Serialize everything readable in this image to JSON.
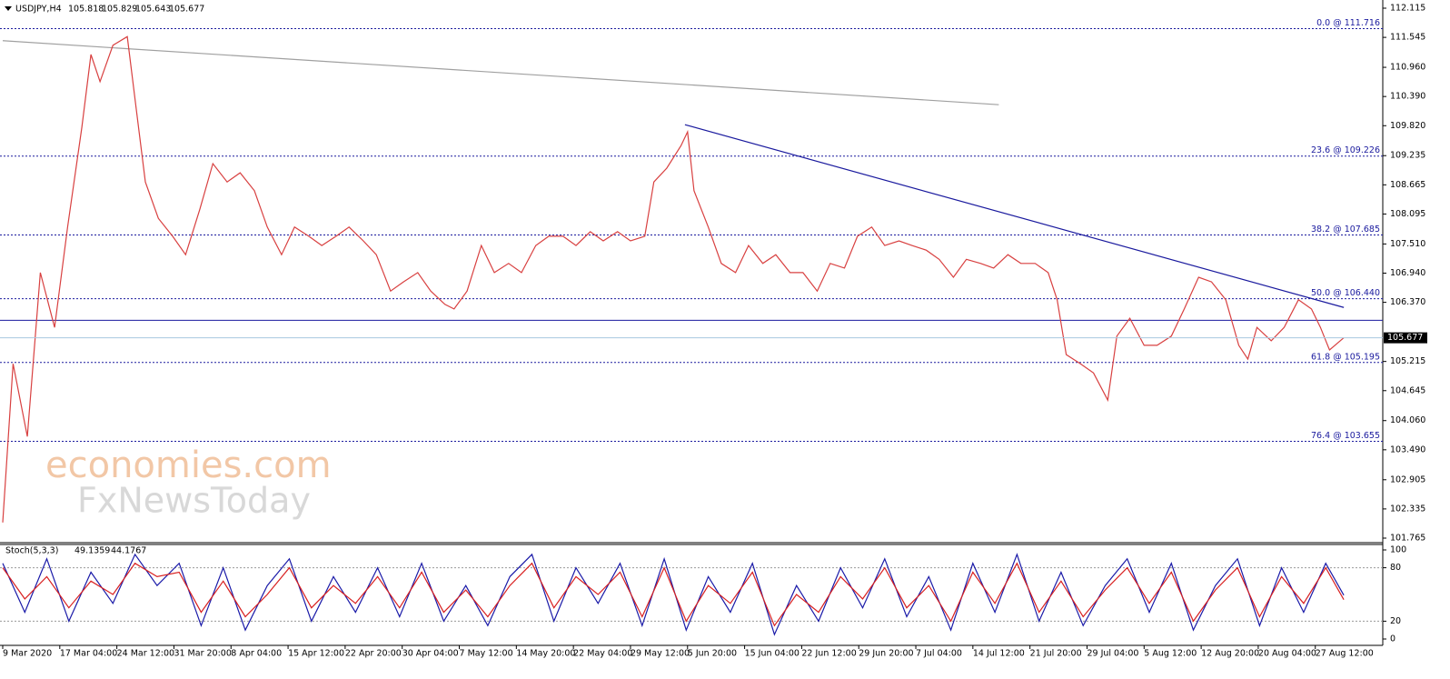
{
  "chart_data": [
    {
      "type": "line",
      "symbol": "USDJPY,H4",
      "ohlc": [
        105.818,
        105.829,
        105.643,
        105.677
      ],
      "watermark": [
        "economies.com",
        "FxNewsToday"
      ],
      "xlim": [
        0,
        1036
      ],
      "xticks": [
        {
          "value": 0,
          "label": "9 Mar 2020"
        },
        {
          "value": 44,
          "label": "17 Mar 04:00"
        },
        {
          "value": 88,
          "label": "24 Mar 12:00"
        },
        {
          "value": 132,
          "label": "31 Mar 20:00"
        },
        {
          "value": 176,
          "label": "8 Apr 04:00"
        },
        {
          "value": 220,
          "label": "15 Apr 12:00"
        },
        {
          "value": 264,
          "label": "22 Apr 20:00"
        },
        {
          "value": 308,
          "label": "30 Apr 04:00"
        },
        {
          "value": 352,
          "label": "7 May 12:00"
        },
        {
          "value": 396,
          "label": "14 May 20:00"
        },
        {
          "value": 440,
          "label": "22 May 04:00"
        },
        {
          "value": 484,
          "label": "29 May 12:00"
        },
        {
          "value": 528,
          "label": "5 Jun 20:00"
        },
        {
          "value": 572,
          "label": "15 Jun 04:00"
        },
        {
          "value": 616,
          "label": "22 Jun 12:00"
        },
        {
          "value": 660,
          "label": "29 Jun 20:00"
        },
        {
          "value": 704,
          "label": "7 Jul 04:00"
        },
        {
          "value": 748,
          "label": "14 Jul 12:00"
        },
        {
          "value": 792,
          "label": "21 Jul 20:00"
        },
        {
          "value": 836,
          "label": "29 Jul 04:00"
        },
        {
          "value": 880,
          "label": "5 Aug 12:00"
        },
        {
          "value": 924,
          "label": "12 Aug 20:00"
        },
        {
          "value": 968,
          "label": "20 Aug 04:00"
        },
        {
          "value": 1012,
          "label": "27 Aug 12:00"
        }
      ],
      "ylim": [
        101.765,
        112.115
      ],
      "yticks": [
        112.115,
        111.545,
        {
          "value": 110.96,
          "label": "110.960"
        },
        {
          "value": 110.39,
          "label": "110.390"
        },
        {
          "value": 109.82,
          "label": "109.820"
        },
        109.235,
        108.665,
        108.095,
        {
          "value": 107.51,
          "label": "107.510"
        },
        {
          "value": 106.94,
          "label": "106.940"
        },
        {
          "value": 106.37,
          "label": "106.370"
        },
        105.215,
        104.645,
        {
          "value": 104.06,
          "label": "104.060"
        },
        {
          "value": 103.49,
          "label": "103.490"
        },
        102.905,
        102.335,
        101.765
      ],
      "levels": [
        {
          "value": 111.716,
          "label": "0.0 @ 111.716"
        },
        {
          "value": 109.226,
          "label": "23.6 @ 109.226"
        },
        {
          "value": 107.685,
          "label": "38.2 @ 107.685"
        },
        {
          "value": 106.44,
          "label": "50.0 @ 106.440"
        },
        {
          "value": 105.195,
          "label": "61.8 @ 105.195"
        },
        {
          "value": 103.655,
          "label": "76.4 @ 103.655"
        }
      ],
      "hlines": [
        106.02
      ],
      "trendlines": [
        {
          "x": [
            0,
            768
          ],
          "y": [
            111.48,
            110.23
          ],
          "color": "#a0a0a0"
        },
        {
          "x": [
            526,
            1034
          ],
          "y": [
            109.84,
            106.27
          ],
          "color": "#1a1a9e"
        }
      ],
      "x": [
        0,
        8,
        19,
        29,
        40,
        50,
        61,
        68,
        75,
        85,
        96,
        103,
        110,
        120,
        131,
        141,
        152,
        162,
        173,
        183,
        194,
        204,
        215,
        225,
        236,
        246,
        257,
        267,
        278,
        288,
        299,
        309,
        320,
        330,
        341,
        348,
        358,
        369,
        379,
        390,
        400,
        411,
        421,
        432,
        442,
        453,
        463,
        474,
        484,
        495,
        502,
        512,
        523,
        528,
        533,
        544,
        554,
        565,
        575,
        586,
        596,
        607,
        617,
        628,
        638,
        649,
        659,
        670,
        680,
        691,
        701,
        712,
        722,
        733,
        743,
        754,
        764,
        775,
        785,
        796,
        806,
        813,
        820,
        831,
        841,
        852,
        859,
        869,
        880,
        890,
        901,
        911,
        922,
        932,
        943,
        953,
        960,
        967,
        978,
        988,
        999,
        1009,
        1016,
        1023,
        1034
      ],
      "series": [
        {
          "color": "#d84040",
          "values": [
            102.07,
            105.17,
            103.75,
            106.95,
            105.88,
            107.84,
            109.79,
            111.21,
            110.68,
            111.39,
            111.56,
            110.14,
            108.72,
            108.01,
            107.66,
            107.3,
            108.19,
            109.08,
            108.72,
            108.9,
            108.55,
            107.84,
            107.3,
            107.84,
            107.66,
            107.48,
            107.66,
            107.84,
            107.57,
            107.3,
            106.59,
            106.77,
            106.95,
            106.59,
            106.33,
            106.24,
            106.59,
            107.48,
            106.95,
            107.13,
            106.95,
            107.48,
            107.66,
            107.66,
            107.48,
            107.75,
            107.57,
            107.75,
            107.57,
            107.66,
            108.72,
            108.99,
            109.43,
            109.7,
            108.55,
            107.84,
            107.13,
            106.95,
            107.48,
            107.13,
            107.3,
            106.95,
            106.95,
            106.59,
            107.13,
            107.04,
            107.66,
            107.84,
            107.48,
            107.57,
            107.48,
            107.39,
            107.21,
            106.86,
            107.21,
            107.13,
            107.04,
            107.3,
            107.13,
            107.13,
            106.95,
            106.42,
            105.35,
            105.17,
            104.99,
            104.46,
            105.71,
            106.06,
            105.53,
            105.53,
            105.71,
            106.24,
            106.86,
            106.77,
            106.42,
            105.53,
            105.26,
            105.88,
            105.62,
            105.88,
            106.42,
            106.24,
            105.88,
            105.44,
            105.677
          ]
        }
      ]
    },
    {
      "type": "line",
      "name": "Stoch(5,3,3)",
      "xlim": [
        0,
        1036
      ],
      "ylim": [
        0,
        100
      ],
      "yticks": [
        0,
        20,
        80,
        100
      ],
      "levels": [
        20,
        80
      ],
      "x": [
        0,
        17,
        34,
        51,
        68,
        85,
        102,
        119,
        136,
        153,
        170,
        187,
        204,
        221,
        238,
        255,
        272,
        289,
        306,
        323,
        340,
        357,
        374,
        391,
        408,
        425,
        442,
        459,
        476,
        493,
        510,
        527,
        544,
        561,
        578,
        595,
        612,
        629,
        646,
        663,
        680,
        697,
        714,
        731,
        748,
        765,
        782,
        799,
        816,
        833,
        850,
        867,
        884,
        901,
        918,
        935,
        952,
        969,
        986,
        1003,
        1020,
        1034
      ],
      "series": [
        {
          "color": "#1a1aa8",
          "values": [
            85,
            30,
            90,
            20,
            75,
            40,
            95,
            60,
            85,
            15,
            80,
            10,
            60,
            90,
            20,
            70,
            30,
            80,
            25,
            85,
            20,
            60,
            15,
            70,
            95,
            20,
            80,
            40,
            85,
            15,
            90,
            10,
            70,
            30,
            85,
            5,
            60,
            20,
            80,
            35,
            90,
            25,
            70,
            10,
            85,
            30,
            95,
            20,
            75,
            15,
            60,
            90,
            30,
            85,
            10,
            60,
            90,
            15,
            80,
            30,
            85,
            49.1359
          ]
        },
        {
          "color": "#d82020",
          "values": [
            80,
            45,
            70,
            35,
            65,
            50,
            85,
            70,
            75,
            30,
            65,
            25,
            50,
            80,
            35,
            60,
            40,
            70,
            35,
            75,
            30,
            55,
            25,
            60,
            85,
            35,
            70,
            50,
            75,
            25,
            80,
            20,
            60,
            40,
            75,
            15,
            50,
            30,
            70,
            45,
            80,
            35,
            60,
            20,
            75,
            40,
            85,
            30,
            65,
            25,
            55,
            80,
            40,
            75,
            20,
            55,
            80,
            25,
            70,
            40,
            80,
            44.1767
          ]
        }
      ]
    }
  ]
}
